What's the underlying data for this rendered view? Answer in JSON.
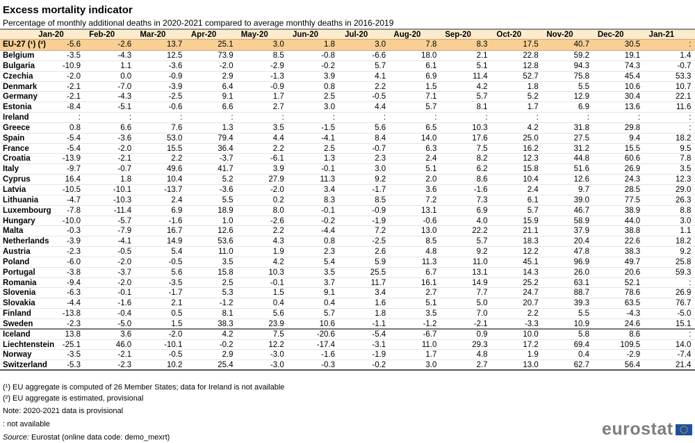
{
  "title": "Excess mortality indicator",
  "subtitle": "Percentage of monthly additional deaths in 2020-2021 compared to average monthly deaths in 2016-2019",
  "colors": {
    "header_bg": "#fdebcd",
    "eu_row_bg": "#f9cf94",
    "logo_blue": "#1f4fa0"
  },
  "chart_data": {
    "type": "table",
    "columns": [
      "Jan-20",
      "Feb-20",
      "Mar-20",
      "Apr-20",
      "May-20",
      "Jun-20",
      "Jul-20",
      "Aug-20",
      "Sep-20",
      "Oct-20",
      "Nov-20",
      "Dec-20",
      "Jan-21"
    ],
    "rows": [
      {
        "country": "EU-27 (¹) (²)",
        "values": [
          "-5.6",
          "-2.6",
          "13.7",
          "25.1",
          "3.0",
          "1.8",
          "3.0",
          "7.8",
          "8.3",
          "17.5",
          "40.7",
          "30.5",
          ":"
        ]
      },
      {
        "country": "Belgium",
        "values": [
          "-3.5",
          "-4.3",
          "12.5",
          "73.9",
          "8.5",
          "-0.8",
          "-6.6",
          "18.0",
          "2.1",
          "22.8",
          "59.2",
          "19.1",
          "1.4"
        ]
      },
      {
        "country": "Bulgaria",
        "values": [
          "-10.9",
          "1.1",
          "-3.6",
          "-2.0",
          "-2.9",
          "-0.2",
          "5.7",
          "6.1",
          "5.1",
          "12.8",
          "94.3",
          "74.3",
          "-0.7"
        ]
      },
      {
        "country": "Czechia",
        "values": [
          "-2.0",
          "0.0",
          "-0.9",
          "2.9",
          "-1.3",
          "3.9",
          "4.1",
          "6.9",
          "11.4",
          "52.7",
          "75.8",
          "45.4",
          "53.3"
        ]
      },
      {
        "country": "Denmark",
        "values": [
          "-2.1",
          "-7.0",
          "-3.9",
          "6.4",
          "-0.9",
          "0.8",
          "2.2",
          "1.5",
          "4.2",
          "1.8",
          "5.5",
          "10.6",
          "10.7"
        ]
      },
      {
        "country": "Germany",
        "values": [
          "-2.1",
          "-4.3",
          "-2.5",
          "9.1",
          "1.7",
          "2.5",
          "-0.5",
          "7.1",
          "5.7",
          "5.2",
          "12.9",
          "30.4",
          "22.1"
        ]
      },
      {
        "country": "Estonia",
        "values": [
          "-8.4",
          "-5.1",
          "-0.6",
          "6.6",
          "2.7",
          "3.0",
          "4.4",
          "5.7",
          "8.1",
          "1.7",
          "6.9",
          "13.6",
          "11.6"
        ]
      },
      {
        "country": "Ireland",
        "values": [
          ":",
          ":",
          ":",
          ":",
          ":",
          ":",
          ":",
          ":",
          ":",
          ":",
          ":",
          ":",
          ":"
        ]
      },
      {
        "country": "Greece",
        "values": [
          "0.8",
          "6.6",
          "7.6",
          "1.3",
          "3.5",
          "-1.5",
          "5.6",
          "6.5",
          "10.3",
          "4.2",
          "31.8",
          "29.8",
          ":"
        ]
      },
      {
        "country": "Spain",
        "values": [
          "-5.4",
          "-3.6",
          "53.0",
          "79.4",
          "4.4",
          "-4.1",
          "8.4",
          "14.0",
          "17.6",
          "25.0",
          "27.5",
          "9.4",
          "18.2"
        ]
      },
      {
        "country": "France",
        "values": [
          "-5.4",
          "-2.0",
          "15.5",
          "36.4",
          "2.2",
          "2.5",
          "-0.7",
          "6.3",
          "7.5",
          "16.2",
          "31.2",
          "15.5",
          "9.5"
        ]
      },
      {
        "country": "Croatia",
        "values": [
          "-13.9",
          "-2.1",
          "2.2",
          "-3.7",
          "-6.1",
          "1.3",
          "2.3",
          "2.4",
          "8.2",
          "12.3",
          "44.8",
          "60.6",
          "7.8"
        ]
      },
      {
        "country": "Italy",
        "values": [
          "-9.7",
          "-0.7",
          "49.6",
          "41.7",
          "3.9",
          "-0.1",
          "3.0",
          "5.1",
          "6.2",
          "15.8",
          "51.6",
          "26.9",
          "3.5"
        ]
      },
      {
        "country": "Cyprus",
        "values": [
          "16.4",
          "1.8",
          "10.4",
          "5.2",
          "27.9",
          "11.3",
          "9.2",
          "2.0",
          "8.6",
          "10.4",
          "12.6",
          "24.3",
          "12.3"
        ]
      },
      {
        "country": "Latvia",
        "values": [
          "-10.5",
          "-10.1",
          "-13.7",
          "-3.6",
          "-2.0",
          "3.4",
          "-1.7",
          "3.6",
          "-1.6",
          "2.4",
          "9.7",
          "28.5",
          "29.0"
        ]
      },
      {
        "country": "Lithuania",
        "values": [
          "-4.7",
          "-10.3",
          "2.4",
          "5.5",
          "0.2",
          "8.3",
          "8.5",
          "7.2",
          "7.3",
          "6.1",
          "39.0",
          "77.5",
          "26.3"
        ]
      },
      {
        "country": "Luxembourg",
        "values": [
          "-7.8",
          "-11.4",
          "6.9",
          "18.9",
          "8.0",
          "-0.1",
          "-0.9",
          "13.1",
          "6.9",
          "5.7",
          "46.7",
          "38.9",
          "8.8"
        ]
      },
      {
        "country": "Hungary",
        "values": [
          "-10.0",
          "-5.7",
          "-1.6",
          "1.0",
          "-2.6",
          "-0.2",
          "-1.9",
          "-0.6",
          "4.0",
          "15.9",
          "58.9",
          "44.0",
          "3.0"
        ]
      },
      {
        "country": "Malta",
        "values": [
          "-0.3",
          "-7.9",
          "16.7",
          "12.6",
          "2.2",
          "-4.4",
          "7.2",
          "13.0",
          "22.2",
          "21.1",
          "37.9",
          "38.8",
          "1.1"
        ]
      },
      {
        "country": "Netherlands",
        "values": [
          "-3.9",
          "-4.1",
          "14.9",
          "53.6",
          "4.3",
          "0.8",
          "-2.5",
          "8.5",
          "5.7",
          "18.3",
          "20.4",
          "22.6",
          "18.2"
        ]
      },
      {
        "country": "Austria",
        "values": [
          "-2.3",
          "-0.5",
          "5.4",
          "11.0",
          "1.9",
          "2.3",
          "2.6",
          "4.8",
          "9.2",
          "12.2",
          "47.8",
          "38.3",
          "9.2"
        ]
      },
      {
        "country": "Poland",
        "values": [
          "-6.0",
          "-2.0",
          "-0.5",
          "3.5",
          "4.2",
          "5.4",
          "5.9",
          "11.3",
          "11.0",
          "45.1",
          "96.9",
          "49.7",
          "25.8"
        ]
      },
      {
        "country": "Portugal",
        "values": [
          "-3.8",
          "-3.7",
          "5.6",
          "15.8",
          "10.3",
          "3.5",
          "25.5",
          "6.7",
          "13.1",
          "14.3",
          "26.0",
          "20.6",
          "59.3"
        ]
      },
      {
        "country": "Romania",
        "values": [
          "-9.4",
          "-2.0",
          "-3.5",
          "2.5",
          "-0.1",
          "3.7",
          "11.7",
          "16.1",
          "14.9",
          "25.2",
          "63.1",
          "52.1",
          ":"
        ]
      },
      {
        "country": "Slovenia",
        "values": [
          "-6.3",
          "-0.1",
          "-1.7",
          "5.3",
          "1.5",
          "9.1",
          "3.4",
          "2.7",
          "7.7",
          "24.7",
          "88.7",
          "78.6",
          "26.9"
        ]
      },
      {
        "country": "Slovakia",
        "values": [
          "-4.4",
          "-1.6",
          "2.1",
          "-1.2",
          "0.4",
          "0.4",
          "1.6",
          "5.1",
          "5.0",
          "20.7",
          "39.3",
          "63.5",
          "76.7"
        ]
      },
      {
        "country": "Finland",
        "values": [
          "-13.8",
          "-0.4",
          "0.5",
          "8.1",
          "5.6",
          "5.7",
          "1.8",
          "3.5",
          "7.0",
          "2.2",
          "5.5",
          "-4.3",
          "-5.0"
        ]
      },
      {
        "country": "Sweden",
        "values": [
          "-2.3",
          "-5.0",
          "1.5",
          "38.3",
          "23.9",
          "10.6",
          "-1.1",
          "-1.2",
          "-2.1",
          "-3.3",
          "10.9",
          "24.6",
          "15.1"
        ]
      },
      {
        "country": "Iceland",
        "values": [
          "13.8",
          "3.6",
          "-2.0",
          "4.2",
          "7.5",
          "-20.6",
          "-5.4",
          "-6.7",
          "0.9",
          "10.0",
          "5.8",
          "8.6",
          ":"
        ]
      },
      {
        "country": "Liechtenstein",
        "values": [
          "-25.1",
          "46.0",
          "-10.1",
          "-0.2",
          "12.2",
          "-17.4",
          "-3.1",
          "11.0",
          "29.3",
          "17.2",
          "69.4",
          "109.5",
          "14.0"
        ]
      },
      {
        "country": "Norway",
        "values": [
          "-3.5",
          "-2.1",
          "-0.5",
          "2.9",
          "-3.0",
          "-1.6",
          "-1.9",
          "1.7",
          "4.8",
          "1.9",
          "0.4",
          "-2.9",
          "-7.4"
        ]
      },
      {
        "country": "Switzerland",
        "values": [
          "-5.3",
          "-2.3",
          "10.2",
          "25.4",
          "-3.0",
          "-0.3",
          "-0.2",
          "3.0",
          "2.7",
          "13.0",
          "62.7",
          "56.4",
          "21.4"
        ]
      }
    ]
  },
  "footnotes": [
    "(¹) EU aggregate is computed of 26 Member States; data for Ireland is not available",
    "(²) EU aggregate is estimated, provisional",
    "Note: 2020-2021 data is provisional",
    ": not available"
  ],
  "source": {
    "label": "Source:",
    "text": "Eurostat (online data code: demo_mexrt)"
  },
  "logo": {
    "text": "eurostat",
    "icon": "eu-flag-icon"
  }
}
